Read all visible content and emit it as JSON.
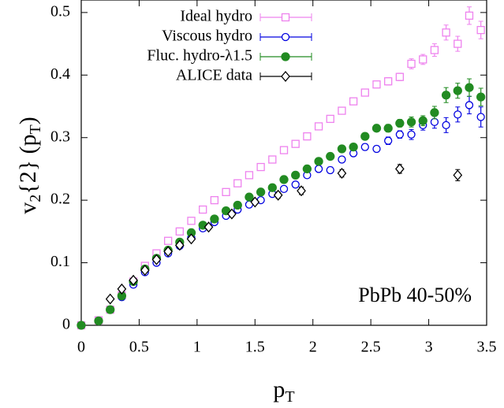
{
  "chart_data": {
    "type": "scatter",
    "xlabel": [
      "p",
      "T"
    ],
    "ylabel": [
      "v",
      "2",
      "{2} (p",
      "T",
      ")"
    ],
    "annotation": "PbPb 40-50%",
    "xlim": [
      0,
      3.5
    ],
    "ylim": [
      0,
      0.52
    ],
    "xticks": [
      0,
      0.5,
      1,
      1.5,
      2,
      2.5,
      3,
      3.5
    ],
    "yticks": [
      0,
      0.1,
      0.2,
      0.3,
      0.4,
      0.5
    ],
    "grid": false,
    "legend": "top-left",
    "series": [
      {
        "name": "Ideal hydro",
        "color": "#ee82ee",
        "marker": "square-open",
        "x": [
          0,
          0.15,
          0.25,
          0.35,
          0.45,
          0.55,
          0.65,
          0.75,
          0.85,
          0.95,
          1.05,
          1.15,
          1.25,
          1.35,
          1.45,
          1.55,
          1.65,
          1.75,
          1.85,
          1.95,
          2.05,
          2.15,
          2.25,
          2.35,
          2.45,
          2.55,
          2.65,
          2.75,
          2.85,
          2.95,
          3.05,
          3.15,
          3.25,
          3.35,
          3.45
        ],
        "values": [
          0,
          0.008,
          0.025,
          0.048,
          0.07,
          0.095,
          0.115,
          0.135,
          0.15,
          0.167,
          0.185,
          0.2,
          0.213,
          0.227,
          0.24,
          0.253,
          0.265,
          0.28,
          0.29,
          0.302,
          0.318,
          0.33,
          0.343,
          0.358,
          0.372,
          0.385,
          0.39,
          0.397,
          0.418,
          0.425,
          0.44,
          0.468,
          0.45,
          0.495,
          0.472
        ],
        "errors": [
          0.002,
          0.002,
          0.002,
          0.002,
          0.002,
          0.002,
          0.003,
          0.003,
          0.003,
          0.003,
          0.003,
          0.003,
          0.003,
          0.003,
          0.003,
          0.003,
          0.003,
          0.003,
          0.004,
          0.004,
          0.005,
          0.005,
          0.005,
          0.005,
          0.005,
          0.005,
          0.006,
          0.006,
          0.008,
          0.008,
          0.01,
          0.012,
          0.012,
          0.014,
          0.014
        ]
      },
      {
        "name": "Viscous hydro",
        "color": "#0000e0",
        "marker": "circle-open",
        "x": [
          0,
          0.15,
          0.25,
          0.35,
          0.45,
          0.55,
          0.65,
          0.75,
          0.85,
          0.95,
          1.05,
          1.15,
          1.25,
          1.35,
          1.45,
          1.55,
          1.65,
          1.75,
          1.85,
          1.95,
          2.05,
          2.15,
          2.25,
          2.35,
          2.45,
          2.55,
          2.65,
          2.75,
          2.85,
          2.95,
          3.05,
          3.15,
          3.25,
          3.35,
          3.45
        ],
        "values": [
          0,
          0.007,
          0.025,
          0.045,
          0.065,
          0.085,
          0.1,
          0.115,
          0.127,
          0.14,
          0.155,
          0.165,
          0.175,
          0.185,
          0.193,
          0.2,
          0.21,
          0.218,
          0.225,
          0.24,
          0.25,
          0.248,
          0.265,
          0.275,
          0.285,
          0.282,
          0.295,
          0.305,
          0.305,
          0.32,
          0.325,
          0.32,
          0.337,
          0.352,
          0.333
        ],
        "errors": [
          0.002,
          0.002,
          0.002,
          0.002,
          0.002,
          0.002,
          0.003,
          0.003,
          0.003,
          0.003,
          0.003,
          0.003,
          0.003,
          0.003,
          0.003,
          0.003,
          0.003,
          0.003,
          0.004,
          0.004,
          0.005,
          0.005,
          0.005,
          0.005,
          0.005,
          0.005,
          0.006,
          0.006,
          0.008,
          0.008,
          0.01,
          0.012,
          0.012,
          0.014,
          0.016
        ]
      },
      {
        "name": "Fluc. hydro-λ1.5",
        "color": "#228b22",
        "marker": "circle-filled",
        "x": [
          0,
          0.15,
          0.25,
          0.35,
          0.45,
          0.55,
          0.65,
          0.75,
          0.85,
          0.95,
          1.05,
          1.15,
          1.25,
          1.35,
          1.45,
          1.55,
          1.65,
          1.75,
          1.85,
          1.95,
          2.05,
          2.15,
          2.25,
          2.35,
          2.45,
          2.55,
          2.65,
          2.75,
          2.85,
          2.95,
          3.05,
          3.15,
          3.25,
          3.35,
          3.45
        ],
        "values": [
          0,
          0.007,
          0.025,
          0.047,
          0.07,
          0.09,
          0.107,
          0.12,
          0.133,
          0.148,
          0.16,
          0.17,
          0.183,
          0.192,
          0.205,
          0.213,
          0.22,
          0.233,
          0.24,
          0.25,
          0.262,
          0.27,
          0.282,
          0.285,
          0.302,
          0.315,
          0.315,
          0.323,
          0.325,
          0.327,
          0.34,
          0.368,
          0.375,
          0.38,
          0.365
        ],
        "errors": [
          0.002,
          0.002,
          0.002,
          0.002,
          0.002,
          0.002,
          0.003,
          0.003,
          0.003,
          0.003,
          0.003,
          0.003,
          0.003,
          0.003,
          0.003,
          0.003,
          0.003,
          0.003,
          0.004,
          0.004,
          0.005,
          0.005,
          0.005,
          0.005,
          0.005,
          0.005,
          0.006,
          0.006,
          0.008,
          0.008,
          0.01,
          0.012,
          0.012,
          0.014,
          0.014
        ]
      },
      {
        "name": "ALICE data",
        "color": "#000000",
        "marker": "diamond-open",
        "x": [
          0.25,
          0.35,
          0.45,
          0.55,
          0.65,
          0.75,
          0.85,
          0.95,
          1.1,
          1.3,
          1.5,
          1.7,
          1.9,
          2.25,
          2.75,
          3.25
        ],
        "values": [
          0.042,
          0.058,
          0.072,
          0.088,
          0.105,
          0.118,
          0.128,
          0.138,
          0.157,
          0.178,
          0.197,
          0.208,
          0.215,
          0.243,
          0.25,
          0.24
        ],
        "errors": [
          0.002,
          0.002,
          0.002,
          0.002,
          0.002,
          0.002,
          0.003,
          0.003,
          0.003,
          0.004,
          0.004,
          0.005,
          0.006,
          0.006,
          0.007,
          0.009
        ]
      }
    ]
  }
}
